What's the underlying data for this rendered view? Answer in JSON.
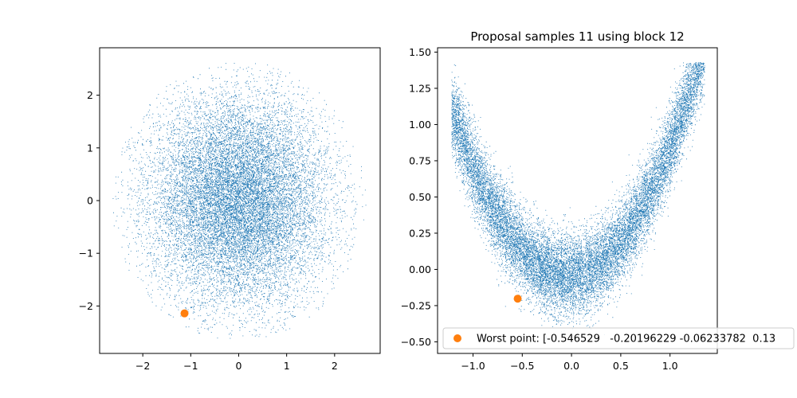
{
  "colors": {
    "samples": "#1f77b4",
    "worst": "#ff7f0e",
    "axes": "#000000",
    "legend_border": "#cccccc"
  },
  "chart_data": [
    {
      "type": "scatter",
      "title": "",
      "xlabel": "",
      "ylabel": "",
      "xlim": [
        -2.9,
        2.95
      ],
      "ylim": [
        -2.9,
        2.9
      ],
      "xticks": [
        -2,
        -1,
        0,
        1,
        2
      ],
      "xtick_labels": [
        "−2",
        "−1",
        "0",
        "1",
        "2"
      ],
      "yticks": [
        -2,
        -1,
        0,
        1,
        2
      ],
      "ytick_labels": [
        "−2",
        "−1",
        "0",
        "1",
        "2"
      ],
      "series": [
        {
          "name": "Proposal samples",
          "distribution": "standard normal cloud",
          "center": [
            0,
            0
          ],
          "std": [
            1,
            1
          ],
          "radius_clip": 2.65,
          "count": 16000
        },
        {
          "name": "Worst point",
          "x": [
            -1.13
          ],
          "y": [
            -2.14
          ]
        }
      ]
    },
    {
      "type": "scatter",
      "title": "Proposal samples 11 using block 12",
      "xlabel": "",
      "ylabel": "",
      "xlim": [
        -1.36,
        1.48
      ],
      "ylim": [
        -0.58,
        1.53
      ],
      "xticks": [
        -1.0,
        -0.5,
        0.0,
        0.5,
        1.0
      ],
      "xtick_labels": [
        "−1.0",
        "−0.5",
        "0.0",
        "0.5",
        "1.0"
      ],
      "yticks": [
        -0.5,
        -0.25,
        0.0,
        0.25,
        0.5,
        0.75,
        1.0,
        1.25,
        1.5
      ],
      "ytick_labels": [
        "−0.50",
        "−0.25",
        "0.00",
        "0.25",
        "0.50",
        "0.75",
        "1.00",
        "1.25",
        "1.50"
      ],
      "legend": {
        "position": "lower-right",
        "labels": [
          "Worst point: [-0.546529   -0.20196229 -0.06233782  0.13"
        ]
      },
      "series": [
        {
          "name": "Proposal samples",
          "distribution": "banana (y = x² + noise)",
          "x_range": [
            -1.22,
            1.35
          ],
          "noise_std": 0.14,
          "count": 16000
        },
        {
          "name": "Worst point",
          "x": [
            -0.546529
          ],
          "y": [
            -0.20196229
          ]
        }
      ]
    }
  ]
}
